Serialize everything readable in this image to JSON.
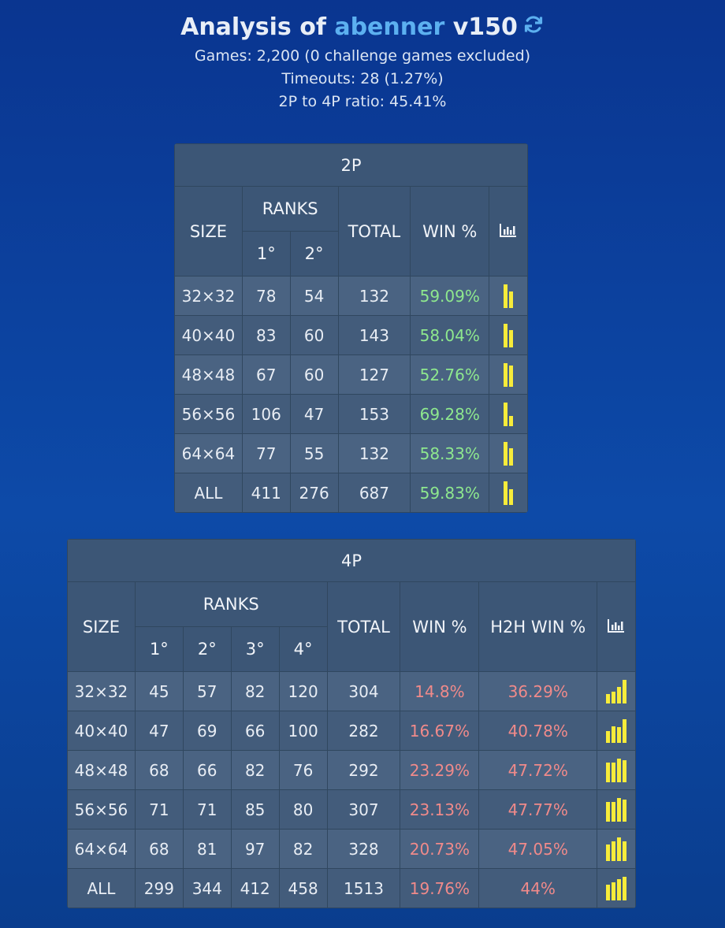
{
  "header": {
    "prefix": "Analysis of",
    "player": "abenner",
    "version": "v150",
    "games": "Games: 2,200 (0 challenge games excluded)",
    "timeouts": "Timeouts: 28 (1.27%)",
    "ratio": "2P to 4P ratio: 45.41%"
  },
  "table2p": {
    "title": "2P",
    "size_label": "SIZE",
    "ranks_label": "RANKS",
    "total_label": "TOTAL",
    "win_label": "WIN %",
    "ranks": [
      "1°",
      "2°"
    ],
    "rows": [
      {
        "size": "32×32",
        "r1": "78",
        "r2": "54",
        "total": "132",
        "win": "59.09%",
        "dist": [
          0.59,
          0.41
        ]
      },
      {
        "size": "40×40",
        "r1": "83",
        "r2": "60",
        "total": "143",
        "win": "58.04%",
        "dist": [
          0.58,
          0.42
        ]
      },
      {
        "size": "48×48",
        "r1": "67",
        "r2": "60",
        "total": "127",
        "win": "52.76%",
        "dist": [
          0.53,
          0.47
        ]
      },
      {
        "size": "56×56",
        "r1": "106",
        "r2": "47",
        "total": "153",
        "win": "69.28%",
        "dist": [
          0.69,
          0.31
        ]
      },
      {
        "size": "64×64",
        "r1": "77",
        "r2": "55",
        "total": "132",
        "win": "58.33%",
        "dist": [
          0.58,
          0.42
        ]
      },
      {
        "size": "ALL",
        "r1": "411",
        "r2": "276",
        "total": "687",
        "win": "59.83%",
        "dist": [
          0.6,
          0.4
        ]
      }
    ]
  },
  "table4p": {
    "title": "4P",
    "size_label": "SIZE",
    "ranks_label": "RANKS",
    "total_label": "TOTAL",
    "win_label": "WIN %",
    "h2h_label": "H2H WIN %",
    "ranks": [
      "1°",
      "2°",
      "3°",
      "4°"
    ],
    "rows": [
      {
        "size": "32×32",
        "r1": "45",
        "r2": "57",
        "r3": "82",
        "r4": "120",
        "total": "304",
        "win": "14.8%",
        "h2h": "36.29%",
        "dist": [
          0.15,
          0.19,
          0.27,
          0.39
        ]
      },
      {
        "size": "40×40",
        "r1": "47",
        "r2": "69",
        "r3": "66",
        "r4": "100",
        "total": "282",
        "win": "16.67%",
        "h2h": "40.78%",
        "dist": [
          0.17,
          0.24,
          0.23,
          0.35
        ]
      },
      {
        "size": "48×48",
        "r1": "68",
        "r2": "66",
        "r3": "82",
        "r4": "76",
        "total": "292",
        "win": "23.29%",
        "h2h": "47.72%",
        "dist": [
          0.23,
          0.23,
          0.28,
          0.26
        ]
      },
      {
        "size": "56×56",
        "r1": "71",
        "r2": "71",
        "r3": "85",
        "r4": "80",
        "total": "307",
        "win": "23.13%",
        "h2h": "47.77%",
        "dist": [
          0.23,
          0.23,
          0.28,
          0.26
        ]
      },
      {
        "size": "64×64",
        "r1": "68",
        "r2": "81",
        "r3": "97",
        "r4": "82",
        "total": "328",
        "win": "20.73%",
        "h2h": "47.05%",
        "dist": [
          0.21,
          0.25,
          0.3,
          0.25
        ]
      },
      {
        "size": "ALL",
        "r1": "299",
        "r2": "344",
        "r3": "412",
        "r4": "458",
        "total": "1513",
        "win": "19.76%",
        "h2h": "44%",
        "dist": [
          0.2,
          0.23,
          0.27,
          0.3
        ]
      }
    ]
  }
}
